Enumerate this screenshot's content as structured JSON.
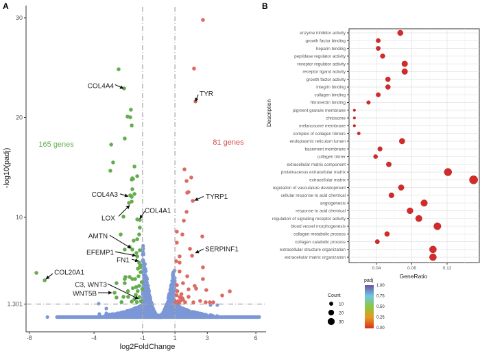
{
  "panels": {
    "a_label": "A",
    "b_label": "B"
  },
  "chart_data": [
    {
      "type": "scatter",
      "panel": "A",
      "xlabel": "log2FoldChange",
      "ylabel": "-log10(padj)",
      "xlim": [
        -8.2,
        6.5
      ],
      "ylim": [
        -1.5,
        31.5
      ],
      "xticks": [
        -8,
        -4,
        -1,
        1,
        3,
        6
      ],
      "yticks": [
        1.301,
        10,
        20,
        30
      ],
      "grid": false,
      "thresholds": {
        "x": [
          -1,
          1
        ],
        "y": 1.301
      },
      "colors": {
        "down": "#63ad4f",
        "up": "#dc6a62",
        "ns": "#7b97d6",
        "threshold": "#a9a9a9"
      },
      "counts": [
        {
          "text": "165 genes",
          "x": -6.33,
          "y": 17.35,
          "color": "#63ad4f"
        },
        {
          "text": "81 genes",
          "x": 4.3,
          "y": 17.56,
          "color": "#d1504a"
        }
      ],
      "down": [
        [
          -2.48,
          24.84
        ],
        [
          -2.14,
          22.92
        ],
        [
          -1.72,
          20.79
        ],
        [
          -1.93,
          20.1
        ],
        [
          -1.76,
          20.03
        ],
        [
          -1.67,
          19.21
        ],
        [
          -2.1,
          17.9
        ],
        [
          -2.94,
          17.29
        ],
        [
          -2.82,
          15.5
        ],
        [
          -2.99,
          14.67
        ],
        [
          -1.5,
          15.09
        ],
        [
          -1.33,
          14.12
        ],
        [
          -1.63,
          13.92
        ],
        [
          -1.67,
          13.78
        ],
        [
          -1.59,
          13.85
        ],
        [
          -1.63,
          12.82
        ],
        [
          -1.76,
          12.2
        ],
        [
          -1.5,
          12.34
        ],
        [
          -1.67,
          12.06
        ],
        [
          -1.84,
          11.44
        ],
        [
          -1.67,
          11.58
        ],
        [
          -2.18,
          10.07
        ],
        [
          -1.33,
          9.79
        ],
        [
          -1.17,
          9.73
        ],
        [
          -1.17,
          8.97
        ],
        [
          -2.35,
          8.28
        ],
        [
          -1.21,
          8.28
        ],
        [
          -1.33,
          7.8
        ],
        [
          -1.55,
          7.66
        ],
        [
          -1.8,
          7.04
        ],
        [
          -2.1,
          6.77
        ],
        [
          -1.63,
          6.77
        ],
        [
          -1.38,
          6.43
        ],
        [
          -1.17,
          6.7
        ],
        [
          -1.33,
          6.08
        ],
        [
          -1.21,
          5.46
        ],
        [
          -1.17,
          4.98
        ],
        [
          -1.29,
          4.85
        ],
        [
          -7.56,
          4.43
        ],
        [
          -7.05,
          3.68
        ],
        [
          -2.06,
          4.02
        ],
        [
          -1.8,
          4.02
        ],
        [
          -2.1,
          3.81
        ],
        [
          -2.61,
          3.4
        ],
        [
          -2.1,
          3.4
        ],
        [
          -1.63,
          3.81
        ],
        [
          -1.46,
          3.81
        ],
        [
          -2.73,
          2.44
        ],
        [
          -2.61,
          1.96
        ],
        [
          -2.18,
          2.03
        ],
        [
          -1.89,
          2.03
        ],
        [
          -1.67,
          1.55
        ],
        [
          -1.42,
          2.23
        ],
        [
          -1.21,
          3.13
        ],
        [
          -1.25,
          4.09
        ],
        [
          -1.12,
          4.5
        ],
        [
          -1.1,
          1.6
        ],
        [
          -1.3,
          2.6
        ],
        [
          -1.5,
          1.8
        ],
        [
          -1.05,
          3.5
        ],
        [
          -1.4,
          3.0
        ],
        [
          -1.2,
          2.0
        ],
        [
          -1.6,
          2.9
        ],
        [
          -1.02,
          2.8
        ],
        [
          -1.15,
          5.2
        ],
        [
          -1.9,
          2.6
        ],
        [
          -2.3,
          1.5
        ],
        [
          -1.35,
          1.5
        ]
      ],
      "up": [
        [
          2.73,
          29.79
        ],
        [
          2.18,
          24.91
        ],
        [
          2.27,
          21.62
        ],
        [
          1.59,
          14.81
        ],
        [
          2.01,
          13.99
        ],
        [
          1.72,
          13.64
        ],
        [
          1.76,
          12.47
        ],
        [
          1.84,
          12.54
        ],
        [
          2.1,
          11.65
        ],
        [
          1.72,
          10.55
        ],
        [
          1.55,
          9.66
        ],
        [
          1.12,
          8.56
        ],
        [
          1.46,
          8.28
        ],
        [
          2.69,
          8.08
        ],
        [
          1.12,
          7.46
        ],
        [
          1.93,
          6.84
        ],
        [
          2.06,
          6.15
        ],
        [
          1.29,
          6.08
        ],
        [
          1.08,
          5.6
        ],
        [
          1.29,
          5.46
        ],
        [
          2.73,
          4.98
        ],
        [
          1.29,
          4.57
        ],
        [
          1.76,
          4.09
        ],
        [
          2.73,
          3.81
        ],
        [
          1.5,
          3.4
        ],
        [
          2.22,
          3.13
        ],
        [
          1.12,
          3.2
        ],
        [
          1.84,
          2.78
        ],
        [
          2.31,
          2.85
        ],
        [
          2.94,
          2.71
        ],
        [
          4.39,
          2.58
        ],
        [
          3.92,
          2.16
        ],
        [
          1.84,
          2.03
        ],
        [
          1.5,
          1.75
        ],
        [
          1.33,
          1.62
        ],
        [
          2.14,
          1.48
        ],
        [
          2.56,
          1.62
        ],
        [
          2.9,
          1.48
        ],
        [
          3.16,
          1.48
        ],
        [
          3.37,
          1.48
        ],
        [
          1.63,
          1.48
        ],
        [
          1.1,
          2.2
        ],
        [
          1.2,
          1.6
        ],
        [
          1.3,
          2.0
        ],
        [
          1.05,
          1.5
        ],
        [
          1.4,
          2.3
        ],
        [
          1.15,
          2.6
        ],
        [
          1.25,
          1.4
        ],
        [
          1.45,
          1.9
        ]
      ],
      "ns_outliers": [
        [
          -6.88,
          0
        ],
        [
          -3.71,
          1.34
        ],
        [
          -3.24,
          0.86
        ],
        [
          -3.67,
          0.31
        ],
        [
          -3.24,
          0.38
        ],
        [
          3.62,
          1.2
        ],
        [
          3.2,
          1.2
        ]
      ],
      "ns_baseline_range": [
        -6.29,
        6.21
      ],
      "annotations": [
        {
          "text": "COL4A4",
          "anchor": "end",
          "tx": -2.73,
          "ty": 23.2,
          "from": [
            -2.7,
            23.3
          ],
          "to": [
            -2.18,
            22.92
          ]
        },
        {
          "text": "TYR",
          "anchor": "start",
          "tx": 2.48,
          "ty": 22.4,
          "from": [
            2.44,
            22.3
          ],
          "to": [
            2.27,
            21.62
          ]
        },
        {
          "text": "COL4A3",
          "anchor": "end",
          "tx": -2.48,
          "ty": 12.3,
          "from": [
            -2.39,
            12.35
          ],
          "to": [
            -1.89,
            12.1
          ]
        },
        {
          "text": "LOX",
          "anchor": "end",
          "tx": -2.65,
          "ty": 9.93,
          "from": [
            -2.48,
            10.1
          ],
          "to": [
            -1.8,
            11.2
          ]
        },
        {
          "text": "COL4A1",
          "anchor": "start",
          "tx": -0.91,
          "ty": 10.7,
          "from": [
            -0.87,
            10.6
          ],
          "to": [
            -1.17,
            9.86
          ]
        },
        {
          "text": "AMTN",
          "anchor": "end",
          "tx": -3.11,
          "ty": 8.14,
          "from": [
            -3.03,
            8.2
          ],
          "to": [
            -1.72,
            6.91
          ]
        },
        {
          "text": "EFEMP1",
          "anchor": "end",
          "tx": -2.73,
          "ty": 6.49,
          "from": [
            -2.69,
            6.55
          ],
          "to": [
            -1.42,
            6.15
          ]
        },
        {
          "text": "FN1",
          "anchor": "end",
          "tx": -1.76,
          "ty": 5.74,
          "from": [
            -1.67,
            5.8
          ],
          "to": [
            -1.25,
            5.6
          ]
        },
        {
          "text": "COL20A1",
          "anchor": "start",
          "tx": -6.5,
          "ty": 4.5,
          "from": [
            -6.55,
            4.36
          ],
          "to": [
            -6.97,
            3.81
          ]
        },
        {
          "text": "C3, WNT3",
          "anchor": "end",
          "tx": -3.16,
          "ty": 3.26,
          "from": [
            -3.16,
            3.33
          ],
          "to": [
            -1.25,
            1.82
          ]
        },
        {
          "text": "WNT5B",
          "anchor": "end",
          "tx": -3.79,
          "ty": 2.37,
          "from": [
            -3.75,
            2.44
          ],
          "to": [
            -2.9,
            2.44
          ]
        },
        {
          "text": "TYRP1",
          "anchor": "start",
          "tx": 2.86,
          "ty": 12.1,
          "from": [
            2.78,
            12.1
          ],
          "to": [
            2.22,
            11.7
          ]
        },
        {
          "text": "SERPINF1",
          "anchor": "start",
          "tx": 2.82,
          "ty": 6.84,
          "from": [
            2.78,
            6.84
          ],
          "to": [
            2.27,
            6.43
          ]
        }
      ]
    },
    {
      "type": "scatter",
      "panel": "B",
      "xlabel": "GeneRatio",
      "ylabel": "Description",
      "xlim": [
        0.009,
        0.157
      ],
      "xticks": [
        "0.04",
        "0.08",
        "0.12"
      ],
      "grid": true,
      "dot_color": "#d42a2a",
      "categories": [
        "enzyme inhibitor activity",
        "growth factor binding",
        "heparin binding",
        "peptidase regulator activity",
        "receptor regulator activity",
        "receptor ligand activity",
        "growth factor activity",
        "integrin binding",
        "collagen binding",
        "fibronectin binding",
        "pigment granule membrane",
        "chitosome",
        "melanosome membrane",
        "complex of collagen trimers",
        "endoplasmic reticulum lumen",
        "basement membrane",
        "collagen trimer",
        "extracellular matrix component",
        "proteinaceous extracellular matrix",
        "extracellular matrix",
        "regulation of vasculature development",
        "cellular response to acid chemical",
        "angiogenesis",
        "response to acid chemical",
        "regulation of signaling receptor activity",
        "blood vessel morphogenesis",
        "collagen metabolic process",
        "collagen catabolic process",
        "extracellular structure organization",
        "extracellular matrix organization"
      ],
      "gene_ratio": [
        0.067,
        0.042,
        0.042,
        0.047,
        0.072,
        0.072,
        0.053,
        0.053,
        0.042,
        0.031,
        0.015,
        0.015,
        0.015,
        0.02,
        0.069,
        0.044,
        0.039,
        0.054,
        0.121,
        0.15,
        0.068,
        0.057,
        0.094,
        0.078,
        0.088,
        0.109,
        0.052,
        0.041,
        0.104,
        0.104
      ],
      "count": [
        19,
        12,
        12,
        14,
        21,
        21,
        15,
        15,
        12,
        9,
        4,
        4,
        4,
        6,
        20,
        13,
        11,
        16,
        35,
        43,
        20,
        17,
        27,
        23,
        26,
        32,
        15,
        12,
        30,
        30
      ],
      "padj_approx": 0.0,
      "legend_count": {
        "title": "Count",
        "values": [
          10,
          20,
          30
        ]
      },
      "legend_padj": {
        "title": "padj",
        "ticks": [
          "1.00",
          "0.75",
          "0.50",
          "0.25",
          "0.00"
        ],
        "gradient": [
          "#6a51a3",
          "#72c6e6",
          "#8cc63f",
          "#e89a1e",
          "#d7301f"
        ]
      }
    }
  ]
}
